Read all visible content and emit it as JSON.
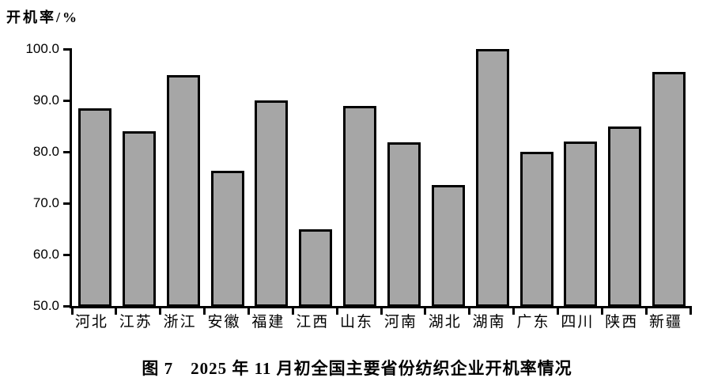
{
  "figure": {
    "caption": "图 7　2025 年 11 月初全国主要省份纺织企业开机率情况"
  },
  "colors": {
    "background": "#ffffff",
    "text": "#000000",
    "axis": "#000000",
    "bar_fill": "#a6a6a6",
    "bar_border": "#000000"
  },
  "chart_data": {
    "type": "bar",
    "title": "图 7　2025 年 11 月初全国主要省份纺织企业开机率情况",
    "xlabel": "",
    "ylabel": "开机率/%",
    "ylim": [
      50.0,
      100.0
    ],
    "y_ticks": [
      100.0,
      90.0,
      80.0,
      70.0,
      60.0,
      50.0
    ],
    "y_tick_labels": [
      "100.0",
      "90.0",
      "80.0",
      "70.0",
      "60.0",
      "50.0"
    ],
    "categories": [
      "河北",
      "江苏",
      "浙江",
      "安徽",
      "福建",
      "江西",
      "山东",
      "河南",
      "湖北",
      "湖南",
      "广东",
      "四川",
      "陕西",
      "新疆"
    ],
    "values": [
      88.5,
      84.0,
      95.0,
      76.3,
      90.0,
      65.0,
      89.0,
      81.8,
      73.5,
      100.0,
      80.0,
      82.0,
      85.0,
      95.5
    ],
    "grid": false,
    "legend": false
  }
}
